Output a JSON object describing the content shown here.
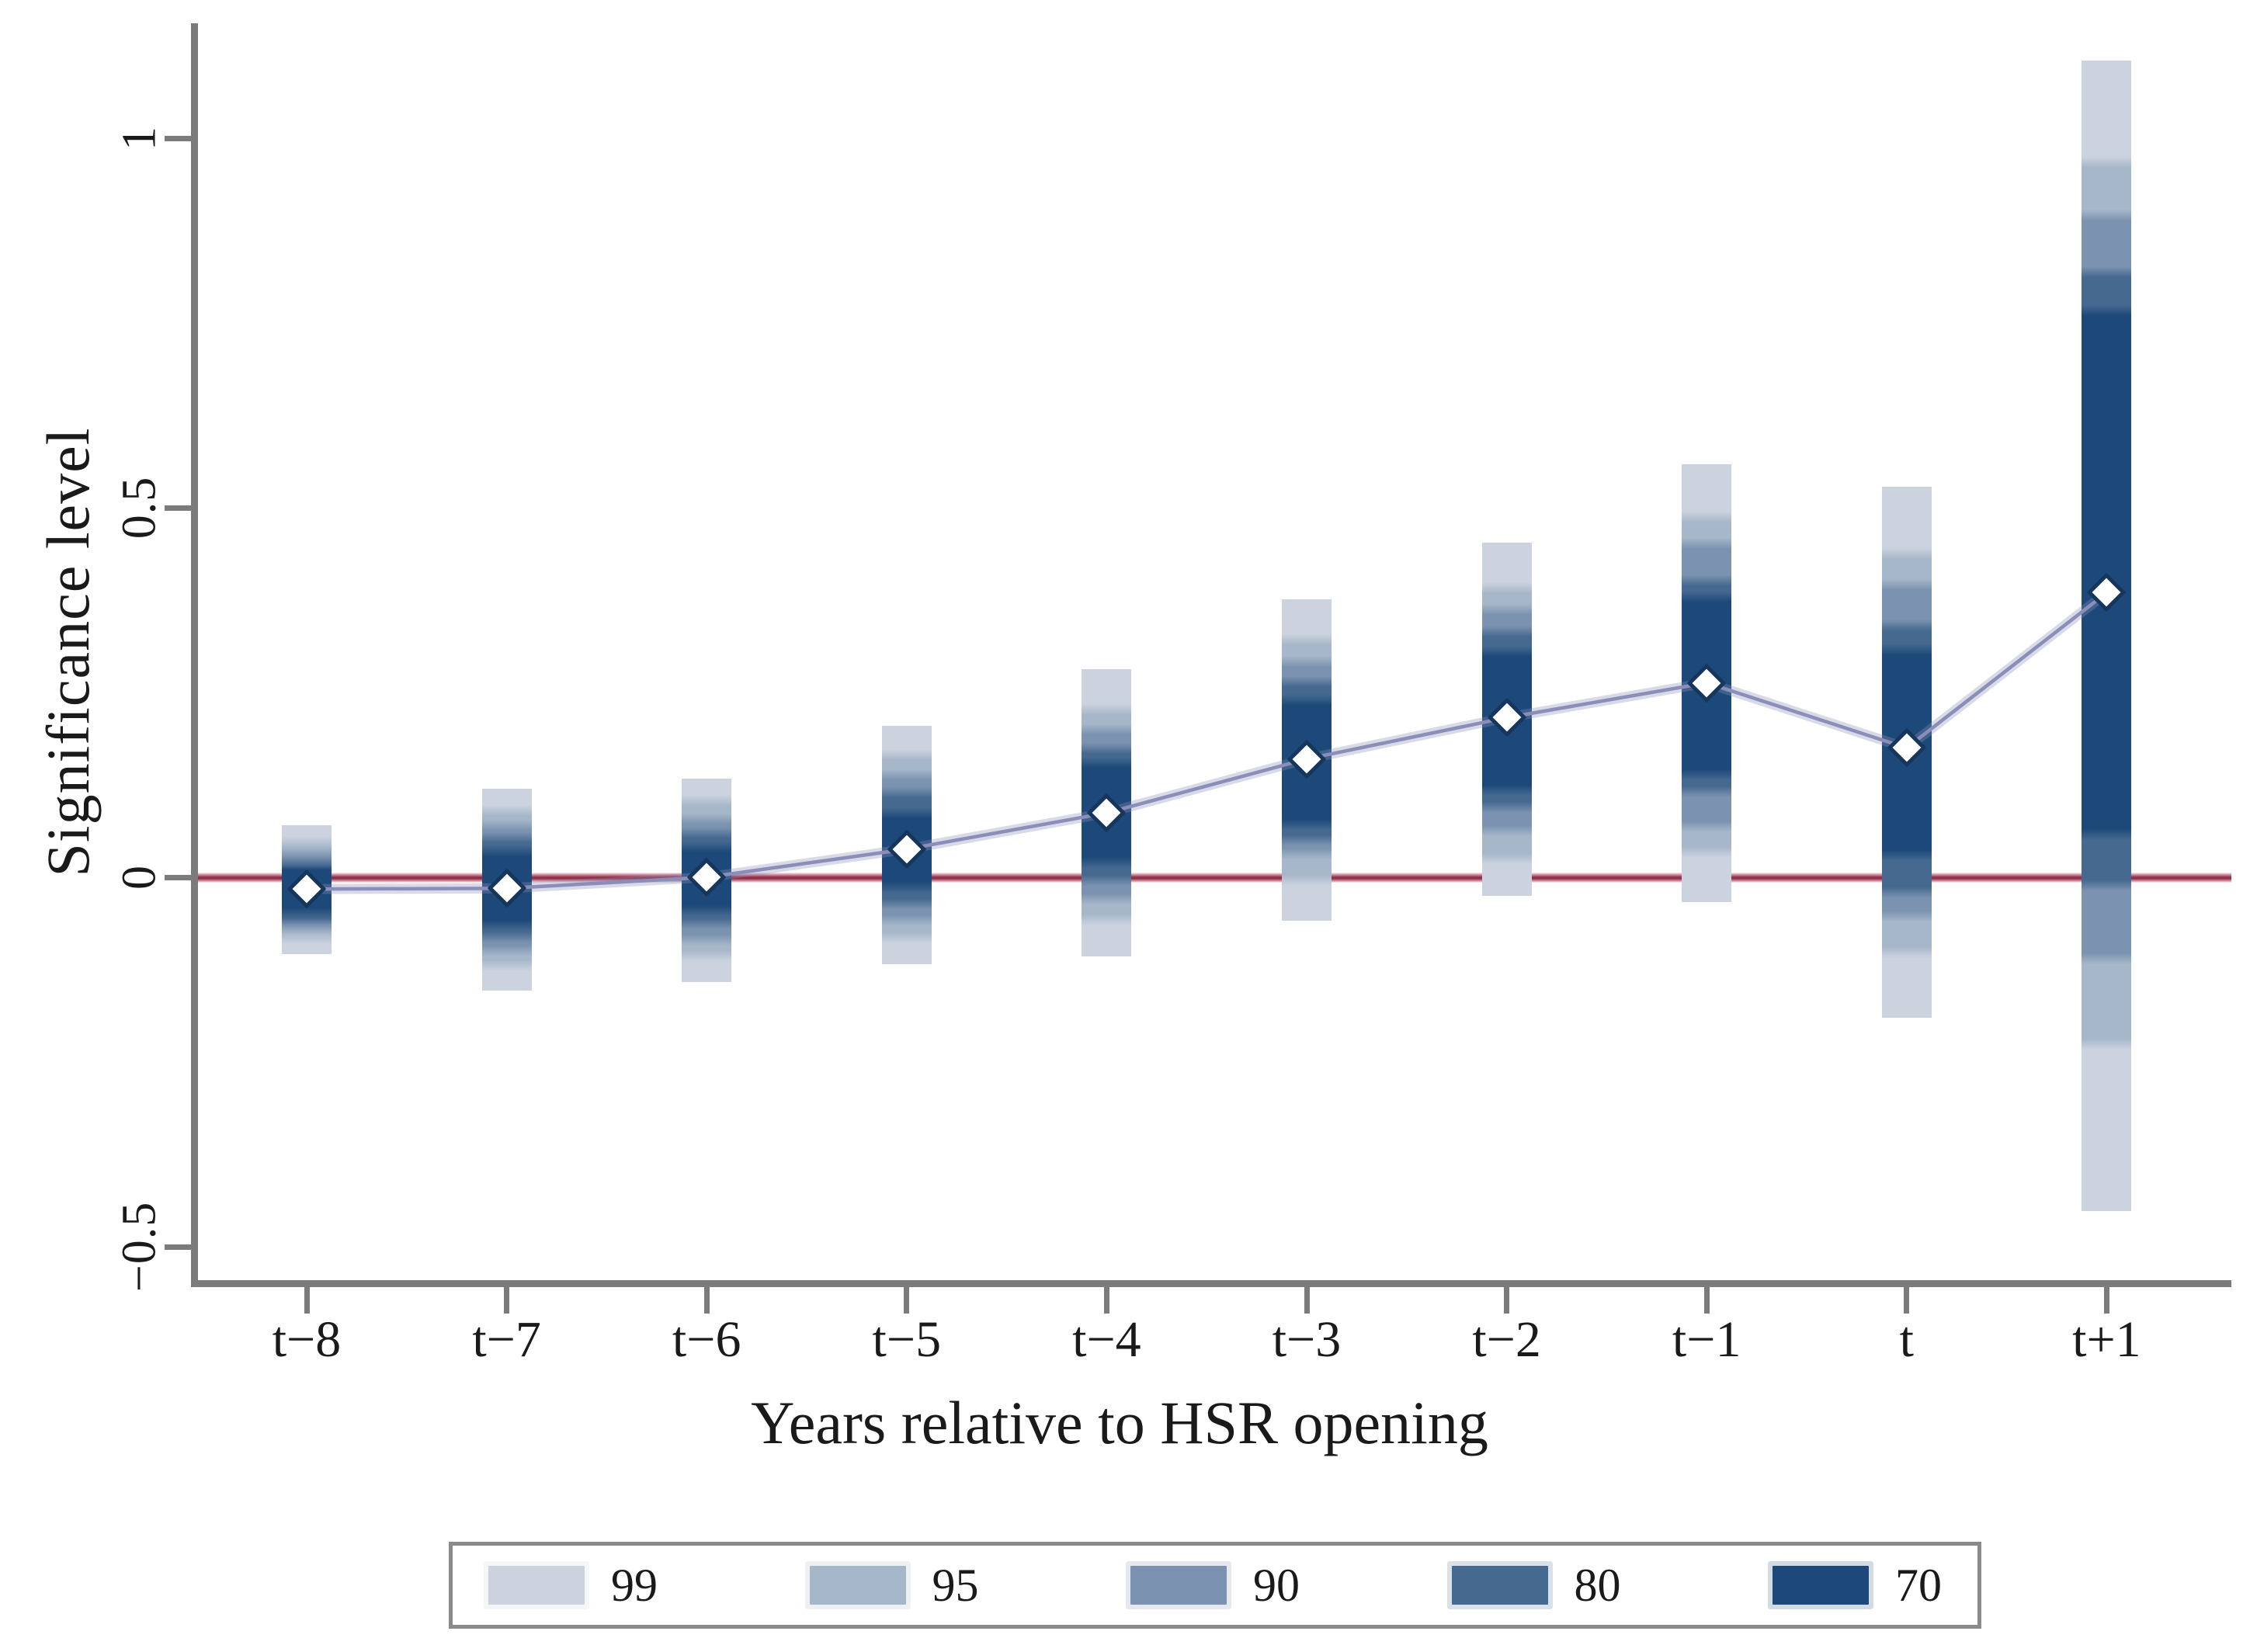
{
  "chart_data": {
    "type": "bar",
    "subtype": "event-study confidence interval bands with point estimates",
    "title": "",
    "xlabel": "Years relative to HSR opening",
    "ylabel": "Significance level",
    "categories": [
      "t−8",
      "t−7",
      "t−6",
      "t−5",
      "t−4",
      "t−3",
      "t−2",
      "t−1",
      "t",
      "t+1"
    ],
    "estimates": [
      -0.016,
      -0.015,
      0.0,
      0.038,
      0.087,
      0.16,
      0.216,
      0.263,
      0.175,
      0.385
    ],
    "ci_bands": [
      {
        "level": "99",
        "color": "#ccd3df",
        "intervals": [
          [
            -0.104,
            0.07
          ],
          [
            -0.153,
            0.12
          ],
          [
            -0.142,
            0.133
          ],
          [
            -0.118,
            0.205
          ],
          [
            -0.107,
            0.281
          ],
          [
            -0.059,
            0.376
          ],
          [
            -0.025,
            0.453
          ],
          [
            -0.034,
            0.559
          ],
          [
            -0.19,
            0.528
          ],
          [
            -0.452,
            1.105
          ]
        ]
      },
      {
        "level": "95",
        "color": "#a7b7ca",
        "intervals": [
          [
            -0.083,
            0.048
          ],
          [
            -0.119,
            0.091
          ],
          [
            -0.107,
            0.104
          ],
          [
            -0.082,
            0.166
          ],
          [
            -0.058,
            0.227
          ],
          [
            -0.004,
            0.322
          ],
          [
            0.025,
            0.392
          ],
          [
            0.034,
            0.488
          ],
          [
            -0.102,
            0.438
          ],
          [
            -0.226,
            0.968
          ]
        ]
      },
      {
        "level": "90",
        "color": "#7b93b0",
        "intervals": [
          [
            -0.069,
            0.035
          ],
          [
            -0.099,
            0.071
          ],
          [
            -0.085,
            0.079
          ],
          [
            -0.058,
            0.139
          ],
          [
            -0.03,
            0.2
          ],
          [
            0.032,
            0.292
          ],
          [
            0.063,
            0.363
          ],
          [
            0.069,
            0.452
          ],
          [
            -0.053,
            0.396
          ],
          [
            -0.11,
            0.896
          ]
        ]
      },
      {
        "level": "80",
        "color": "#466990",
        "intervals": [
          [
            -0.058,
            0.023
          ],
          [
            -0.081,
            0.054
          ],
          [
            -0.063,
            0.06
          ],
          [
            -0.036,
            0.115
          ],
          [
            -0.005,
            0.174
          ],
          [
            0.05,
            0.265
          ],
          [
            0.095,
            0.333
          ],
          [
            0.116,
            0.402
          ],
          [
            -0.021,
            0.341
          ],
          [
            -0.011,
            0.819
          ]
        ]
      },
      {
        "level": "70",
        "color": "#1c4979",
        "intervals": [
          [
            -0.049,
            0.017
          ],
          [
            -0.065,
            0.036
          ],
          [
            -0.046,
            0.041
          ],
          [
            -0.014,
            0.087
          ],
          [
            0.019,
            0.155
          ],
          [
            0.071,
            0.24
          ],
          [
            0.118,
            0.306
          ],
          [
            0.139,
            0.38
          ],
          [
            0.029,
            0.308
          ],
          [
            0.058,
            0.767
          ]
        ]
      }
    ],
    "yticks": [
      {
        "value": 1,
        "label": "1"
      },
      {
        "value": 0.5,
        "label": "0.5"
      },
      {
        "value": 0,
        "label": "0"
      },
      {
        "value": -0.5,
        "label": "−0.5"
      }
    ],
    "ylim": [
      -0.55,
      1.16
    ],
    "zero_line_value": 0,
    "grid": false,
    "legend_position": "bottom",
    "legend_entries": [
      {
        "label": "99",
        "color": "#ccd3df"
      },
      {
        "label": "95",
        "color": "#a7b7ca"
      },
      {
        "label": "90",
        "color": "#7b93b0"
      },
      {
        "label": "80",
        "color": "#466990"
      },
      {
        "label": "70",
        "color": "#1c4979"
      }
    ],
    "colors": {
      "zero_line": "#8f3048",
      "connector_line": "#8b8eb8",
      "marker_fill": "#ffffff",
      "marker_border": "#16365c",
      "axis": "#7b7b7b"
    }
  }
}
